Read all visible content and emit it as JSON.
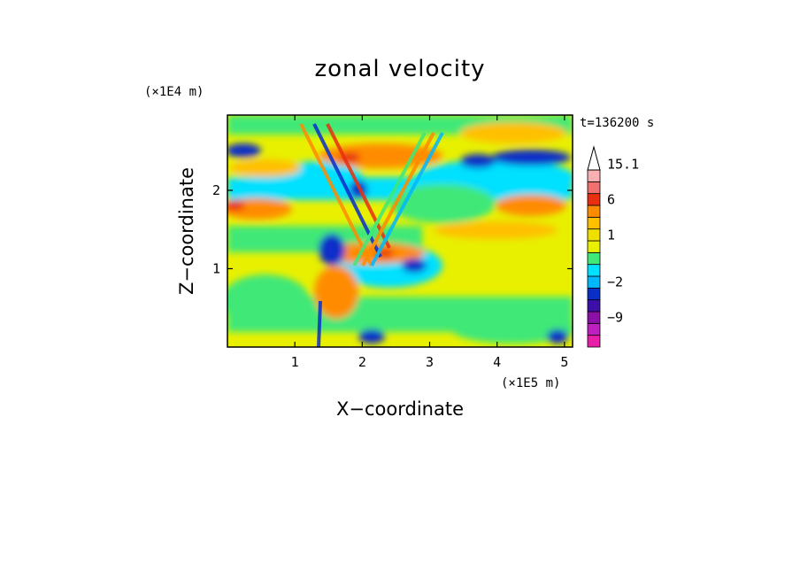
{
  "chart_data": {
    "type": "heatmap",
    "title": "zonal velocity",
    "xlabel": "X−coordinate",
    "ylabel": "Z−coordinate",
    "x_scale_label": "(×1E5 m)",
    "y_scale_label": "(×1E4 m)",
    "time_label": "t=136200 s",
    "xlim": [
      0,
      5.12
    ],
    "ylim": [
      0,
      2.96
    ],
    "x_ticks": [
      {
        "value": 1,
        "label": "1"
      },
      {
        "value": 2,
        "label": "2"
      },
      {
        "value": 3,
        "label": "3"
      },
      {
        "value": 4,
        "label": "4"
      },
      {
        "value": 5,
        "label": "5"
      }
    ],
    "y_ticks": [
      {
        "value": 1,
        "label": "1"
      },
      {
        "value": 2,
        "label": "2"
      }
    ],
    "colorbar": {
      "levels": [
        -15,
        -12,
        -9,
        -6,
        -3,
        -2,
        -1,
        -0.5,
        0.5,
        1,
        2,
        3,
        6,
        9,
        12,
        15.1
      ],
      "colors": [
        "#e81ea8",
        "#bf1fbf",
        "#8c10a8",
        "#3c10a8",
        "#0a2ec8",
        "#00b8ff",
        "#00e0ff",
        "#40e878",
        "#e8f000",
        "#f0e000",
        "#ffc000",
        "#ff8c00",
        "#e83010",
        "#f07070",
        "#f8b0b0",
        "#ffffff"
      ],
      "labels": [
        {
          "value": 15.1,
          "label": "15.1"
        },
        {
          "value": 6,
          "label": "6"
        },
        {
          "value": 1,
          "label": "1"
        },
        {
          "value": -2,
          "label": "−2"
        },
        {
          "value": -9,
          "label": "−9"
        }
      ]
    }
  }
}
